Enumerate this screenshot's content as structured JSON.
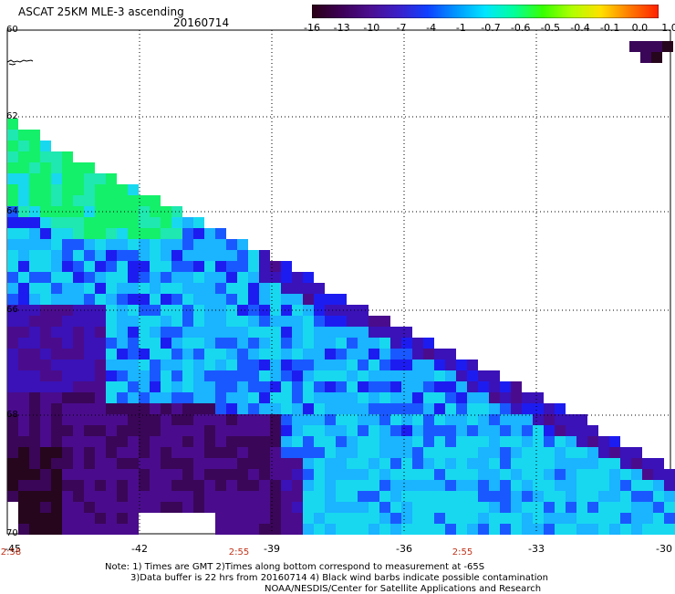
{
  "header": {
    "title": "ASCAT 25KM MLE-3 ascending",
    "date": "20160714"
  },
  "colorbar": {
    "labels": [
      "-16",
      "-13",
      "-10",
      "-7",
      "-4",
      "-1",
      "-0.7",
      "-0.6",
      "-0.5",
      "-0.4",
      "-0.1",
      "0.0",
      "1.0"
    ],
    "colors": [
      "#2a0014",
      "#3d0055",
      "#4b0f8f",
      "#3b20c8",
      "#1040ff",
      "#0098ff",
      "#00e6ff",
      "#00ff9a",
      "#38ff00",
      "#b0ff00",
      "#ffe000",
      "#ff7a00",
      "#ff2000"
    ]
  },
  "axes": {
    "lat_labels": [
      "60",
      "62",
      "64",
      "66",
      "68",
      "70"
    ],
    "lon_labels": [
      "-45",
      "-42",
      "-39",
      "-36",
      "-33",
      "-30"
    ],
    "time_labels": [
      "2:58",
      "2:55",
      "2:55"
    ]
  },
  "notes": {
    "line1": "Note: 1) Times are GMT 2)Times along bottom correspond to measurement at -65S",
    "line2": "3)Data buffer is 22 hrs from 20160714 4) Black wind barbs indicate possible contamination",
    "line3": "NOAA/NESDIS/Center for Satellite Applications and Research"
  }
}
